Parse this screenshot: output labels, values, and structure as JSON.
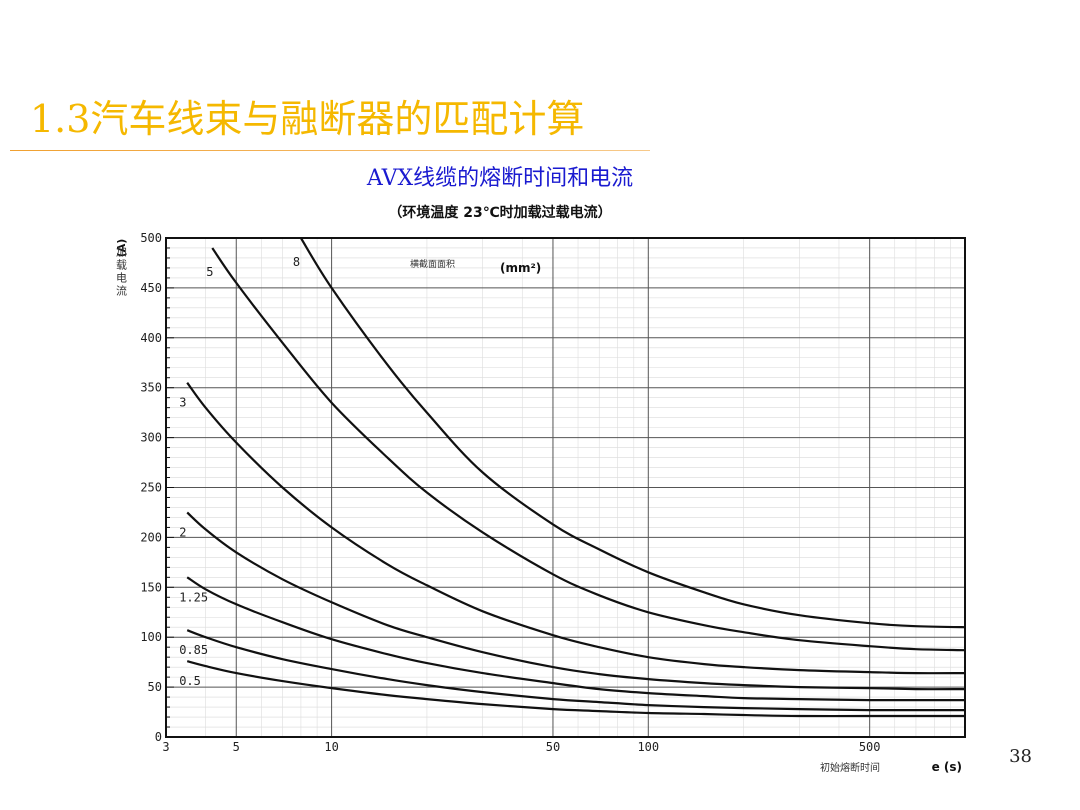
{
  "slide": {
    "title": "1.3汽车线束与融断器的匹配计算",
    "page_number": "38"
  },
  "chart_data": {
    "type": "line",
    "title": "AVX线缆的熔断时间和电流",
    "subtitle": "（环境温度 23℃时加载过载电流）",
    "ylabel": "加载电流",
    "ylabel_unit": "(A)",
    "xlabel": "初始熔断时间",
    "xlabel_unit": "e (s)",
    "legend_title": "横截面面积",
    "legend_unit": "(mm²)",
    "x_scale": "log",
    "xlim": [
      3,
      1000
    ],
    "ylim": [
      0,
      500
    ],
    "x_ticks": [
      "3",
      "5",
      "10",
      "50",
      "100",
      "500"
    ],
    "y_ticks": [
      "0",
      "50",
      "100",
      "150",
      "200",
      "250",
      "300",
      "350",
      "400",
      "450",
      "500"
    ],
    "grid": true,
    "series": [
      {
        "name": "8",
        "x": [
          8,
          10,
          15,
          20,
          30,
          50,
          70,
          100,
          150,
          200,
          300,
          500,
          700,
          1000
        ],
        "y": [
          500,
          450,
          373,
          325,
          265,
          213,
          188,
          165,
          145,
          133,
          122,
          114,
          111,
          110
        ]
      },
      {
        "name": "5",
        "x": [
          4.2,
          5,
          7,
          10,
          15,
          20,
          30,
          50,
          70,
          100,
          150,
          200,
          300,
          500,
          700,
          1000
        ],
        "y": [
          490,
          455,
          395,
          335,
          280,
          245,
          205,
          163,
          142,
          125,
          112,
          105,
          97,
          91,
          88,
          87
        ]
      },
      {
        "name": "3",
        "x": [
          3.5,
          4,
          5,
          7,
          10,
          15,
          20,
          30,
          50,
          70,
          100,
          150,
          200,
          300,
          500,
          700,
          1000
        ],
        "y": [
          355,
          330,
          295,
          250,
          210,
          173,
          152,
          126,
          102,
          90,
          80,
          73,
          70,
          67,
          65,
          64,
          64
        ]
      },
      {
        "name": "2",
        "x": [
          3.5,
          4,
          5,
          7,
          10,
          15,
          20,
          30,
          50,
          70,
          100,
          150,
          200,
          300,
          500,
          700,
          1000
        ],
        "y": [
          225,
          208,
          185,
          158,
          135,
          112,
          100,
          85,
          70,
          63,
          58,
          54,
          52,
          50,
          49,
          48,
          48
        ]
      },
      {
        "name": "1.25",
        "x": [
          3.5,
          4,
          5,
          7,
          10,
          15,
          20,
          30,
          50,
          70,
          100,
          150,
          200,
          300,
          500,
          700,
          1000
        ],
        "y": [
          160,
          148,
          133,
          115,
          98,
          83,
          74,
          64,
          54,
          48,
          44,
          41,
          39,
          38,
          37,
          37,
          37
        ]
      },
      {
        "name": "0.85",
        "x": [
          3.5,
          4,
          5,
          7,
          10,
          15,
          20,
          30,
          50,
          70,
          100,
          150,
          200,
          300,
          500,
          700,
          1000
        ],
        "y": [
          107,
          100,
          90,
          78,
          68,
          58,
          52,
          45,
          38,
          35,
          32,
          30,
          29,
          28,
          27,
          27,
          27
        ]
      },
      {
        "name": "0.5",
        "x": [
          3.5,
          4,
          5,
          7,
          10,
          15,
          20,
          30,
          50,
          70,
          100,
          150,
          200,
          300,
          500,
          700,
          1000
        ],
        "y": [
          76,
          71,
          64,
          56,
          49,
          42,
          38,
          33,
          28,
          26,
          24,
          23,
          22,
          21,
          21,
          21,
          21
        ]
      }
    ]
  }
}
